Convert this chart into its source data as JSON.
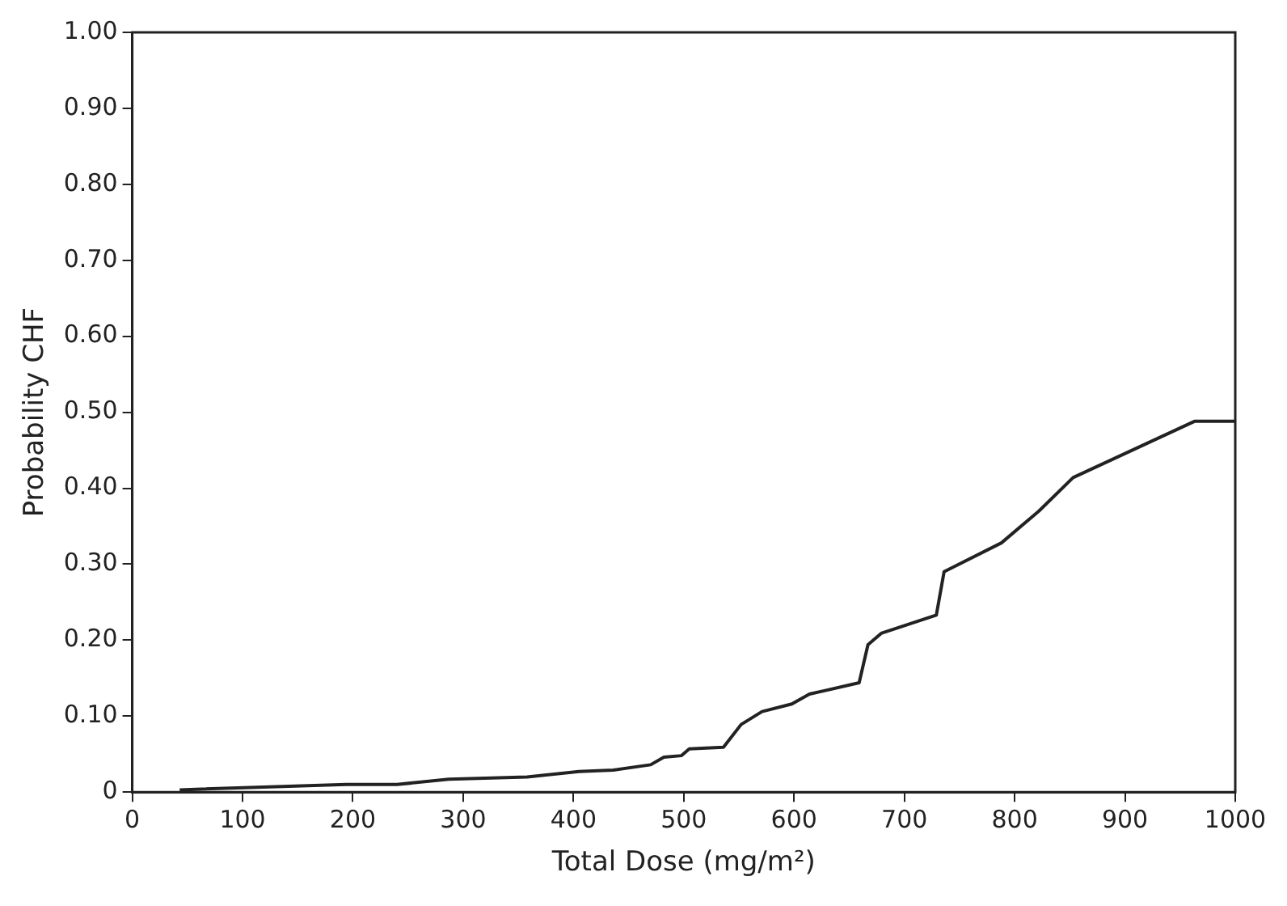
{
  "chart_data": {
    "type": "line",
    "xlabel": "Total Dose (mg/m²)",
    "ylabel": "Probability CHF",
    "series": [
      {
        "color": "#222222",
        "x": [
          43,
          194,
          240,
          287,
          358,
          405,
          436,
          470,
          482,
          498,
          505,
          536,
          552,
          571,
          598,
          614,
          659,
          667,
          679,
          729,
          736,
          788,
          822,
          853,
          963,
          1000
        ],
        "values": [
          0.003,
          0.01,
          0.01,
          0.017,
          0.02,
          0.027,
          0.029,
          0.036,
          0.046,
          0.048,
          0.057,
          0.059,
          0.089,
          0.106,
          0.116,
          0.129,
          0.144,
          0.194,
          0.209,
          0.233,
          0.29,
          0.328,
          0.37,
          0.414,
          0.488,
          0.488
        ]
      }
    ],
    "xlim": [
      0,
      1000
    ],
    "xticks": [
      0,
      100,
      200,
      300,
      400,
      500,
      600,
      700,
      800,
      900,
      1000
    ],
    "ylim": [
      0,
      1
    ],
    "yticks": [
      0,
      {
        "value": 0.1,
        "label": "0.10"
      },
      {
        "value": 0.2,
        "label": "0.20"
      },
      {
        "value": 0.3,
        "label": "0.30"
      },
      {
        "value": 0.4,
        "label": "0.40"
      },
      {
        "value": 0.5,
        "label": "0.50"
      },
      {
        "value": 0.6,
        "label": "0.60"
      },
      {
        "value": 0.7,
        "label": "0.70"
      },
      {
        "value": 0.8,
        "label": "0.80"
      },
      {
        "value": 0.9,
        "label": "0.90"
      },
      {
        "value": 1,
        "label": "1.00"
      }
    ],
    "grid": false,
    "legend": false,
    "marker": "none",
    "line_style": "solid"
  }
}
